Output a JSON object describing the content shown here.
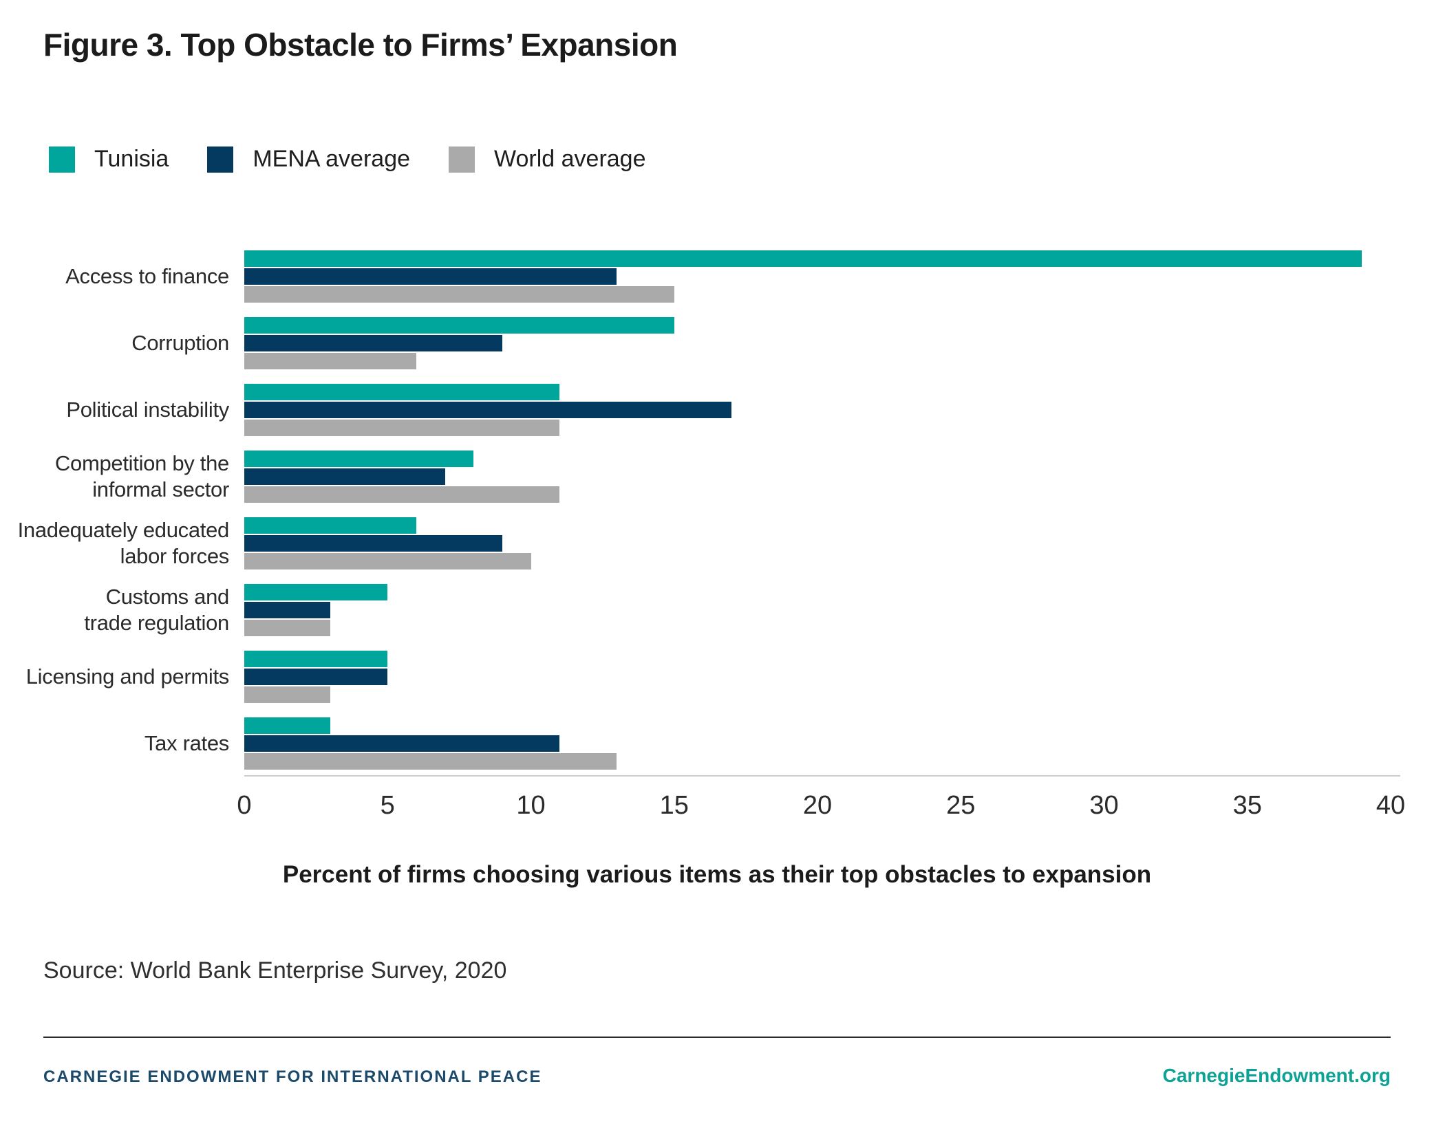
{
  "figure": {
    "title": "Figure 3. Top Obstacle to Firms’ Expansion",
    "source": "Source: World Bank Enterprise Survey, 2020",
    "footer": {
      "left": "CARNEGIE ENDOWMENT FOR INTERNATIONAL PEACE",
      "right": "CarnegieEndowment.org"
    }
  },
  "colors": {
    "tunisia_teal": "#00A69C",
    "mena_navy": "#043A5F",
    "world_gray": "#AAAAAA",
    "axis_line": "#CCCCCC",
    "footer_navy": "#1C4A6B",
    "footer_teal": "#0DA296",
    "text_dark": "#1B1B1B",
    "text_body": "#2B2B2B"
  },
  "legend": [
    {
      "label": "Tunisia",
      "color": "#00A69C"
    },
    {
      "label": "MENA average",
      "color": "#043A5F"
    },
    {
      "label": "World average",
      "color": "#AAAAAA"
    }
  ],
  "chart_data": {
    "type": "bar",
    "orientation": "horizontal",
    "title": "Figure 3. Top Obstacle to Firms’ Expansion",
    "categories": [
      "Access to finance",
      "Corruption",
      "Political instability",
      "Competition by the informal sector",
      "Inadequately educated labor forces",
      "Customs and trade regulation",
      "Licensing and permits",
      "Tax rates"
    ],
    "category_lines": [
      [
        "Access to finance"
      ],
      [
        "Corruption"
      ],
      [
        "Political instability"
      ],
      [
        "Competition by the",
        "informal sector"
      ],
      [
        "Inadequately educated",
        "labor forces"
      ],
      [
        "Customs and",
        "trade regulation"
      ],
      [
        "Licensing and permits"
      ],
      [
        "Tax rates"
      ]
    ],
    "series": [
      {
        "name": "Tunisia",
        "color": "#00A69C",
        "values": [
          39,
          15,
          11,
          8,
          6,
          5,
          5,
          3
        ]
      },
      {
        "name": "MENA average",
        "color": "#043A5F",
        "values": [
          13,
          9,
          17,
          7,
          9,
          3,
          5,
          11
        ]
      },
      {
        "name": "World average",
        "color": "#AAAAAA",
        "values": [
          15,
          6,
          11,
          11,
          10,
          3,
          3,
          13
        ]
      }
    ],
    "xlabel": "Percent of firms choosing various items as their top obstacles to expansion",
    "xlim": [
      0,
      40
    ],
    "xticks": [
      0,
      5,
      10,
      15,
      20,
      25,
      30,
      35,
      40
    ],
    "grid": false,
    "legend_position": "top-left"
  }
}
